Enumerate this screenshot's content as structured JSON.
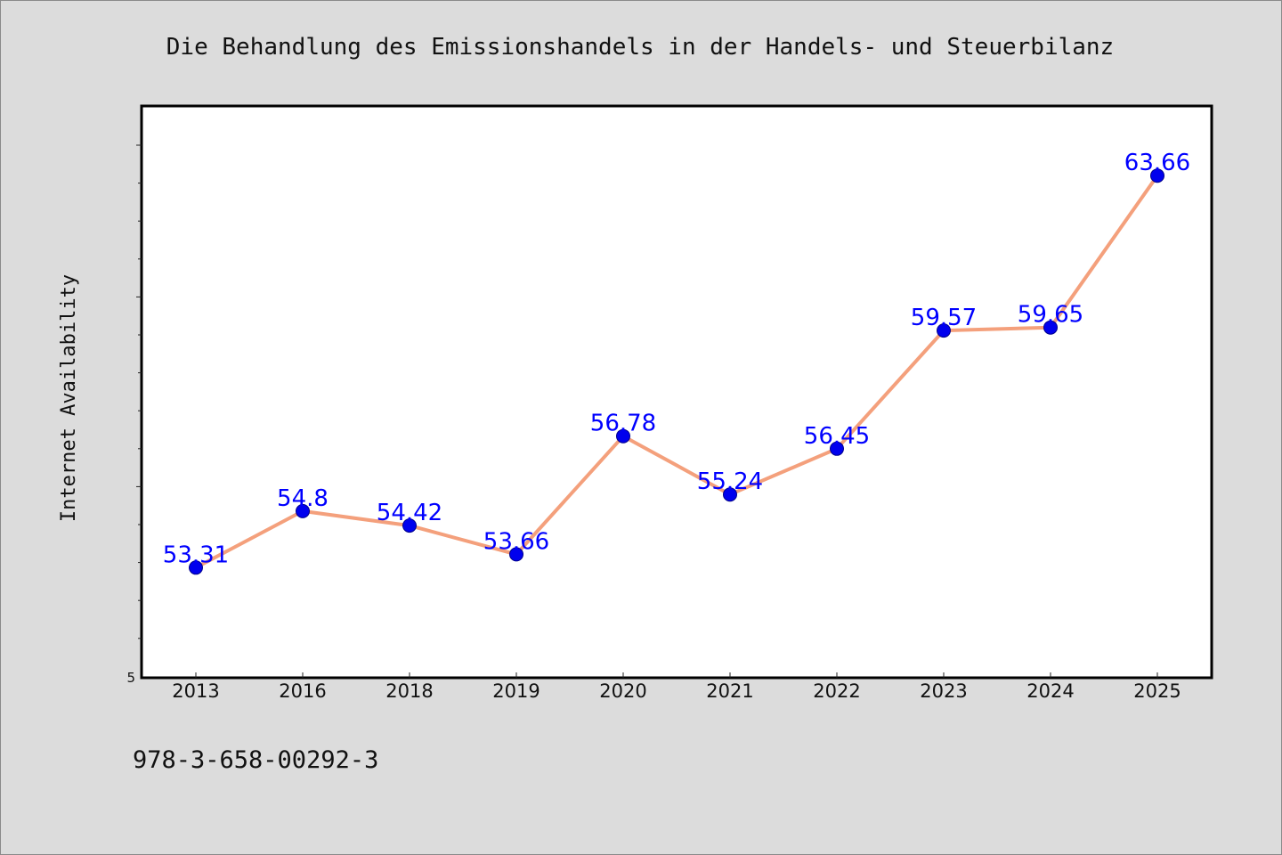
{
  "chart_data": {
    "type": "line",
    "title": "Die Behandlung des Emissionshandels in der Handels- und Steuerbilanz",
    "xlabel": "",
    "ylabel": "Internet Availability",
    "categories": [
      "2013",
      "2016",
      "2018",
      "2019",
      "2020",
      "2021",
      "2022",
      "2023",
      "2024",
      "2025"
    ],
    "series": [
      {
        "values": [
          53.31,
          54.8,
          54.42,
          53.66,
          56.78,
          55.24,
          56.45,
          59.57,
          59.65,
          63.66
        ],
        "labels": [
          "53.31",
          "54.8",
          "54.42",
          "53.66",
          "56.78",
          "55.24",
          "56.45",
          "59.57",
          "59.65",
          "63.66"
        ]
      }
    ],
    "y_tick_labels": [
      "5"
    ],
    "ylim": [
      50.4,
      65.5
    ],
    "line_color": "#f4a07c",
    "marker_color": "#0000ee",
    "label_color": "#0000ff",
    "grid": false,
    "legend": "none"
  },
  "footer": {
    "isbn": "978-3-658-00292-3"
  }
}
